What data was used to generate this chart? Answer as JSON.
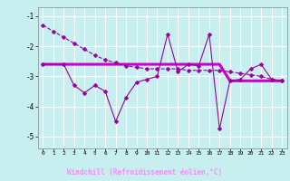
{
  "xlabel": "Windchill (Refroidissement éolien,°C)",
  "background_color": "#c8eff0",
  "grid_color": "#aadddd",
  "line_color": "#990099",
  "xlabel_bg": "#660066",
  "xlabel_fg": "#ff66ff",
  "ylim": [
    -5.4,
    -0.7
  ],
  "xlim": [
    -0.5,
    23.5
  ],
  "yticks": [
    -5,
    -4,
    -3,
    -2,
    -1
  ],
  "xticks": [
    0,
    1,
    2,
    3,
    4,
    5,
    6,
    7,
    8,
    9,
    10,
    11,
    12,
    13,
    14,
    15,
    16,
    17,
    18,
    19,
    20,
    21,
    22,
    23
  ],
  "series1_x": [
    0,
    1,
    2,
    3,
    4,
    5,
    6,
    7,
    8,
    9,
    10,
    11,
    12,
    13,
    14,
    15,
    16,
    17,
    18,
    19,
    20,
    21,
    22,
    23
  ],
  "series1_y": [
    -1.3,
    -1.5,
    -1.7,
    -1.9,
    -2.1,
    -2.3,
    -2.45,
    -2.55,
    -2.65,
    -2.7,
    -2.75,
    -2.75,
    -2.75,
    -2.75,
    -2.8,
    -2.8,
    -2.8,
    -2.8,
    -2.85,
    -2.9,
    -2.95,
    -3.0,
    -3.1,
    -3.15
  ],
  "series2_x": [
    0,
    2,
    3,
    4,
    5,
    6,
    7,
    8,
    9,
    10,
    11,
    12,
    13,
    14,
    15,
    16,
    17,
    18,
    19,
    20,
    21,
    22,
    23
  ],
  "series2_y": [
    -2.6,
    -2.6,
    -3.3,
    -3.55,
    -3.3,
    -3.5,
    -4.5,
    -3.7,
    -3.2,
    -3.1,
    -3.0,
    -1.6,
    -2.85,
    -2.6,
    -2.65,
    -1.6,
    -4.75,
    -3.15,
    -3.1,
    -2.75,
    -2.6,
    -3.1,
    -3.15
  ],
  "series3_x": [
    0,
    1,
    2,
    3,
    4,
    5,
    6,
    7,
    8,
    9,
    10,
    11,
    12,
    13,
    14,
    15,
    16,
    17,
    18,
    19,
    20,
    21,
    22,
    23
  ],
  "series3_y": [
    -2.6,
    -2.6,
    -2.6,
    -2.6,
    -2.6,
    -2.6,
    -2.6,
    -2.6,
    -2.6,
    -2.6,
    -2.6,
    -2.6,
    -2.6,
    -2.6,
    -2.6,
    -2.6,
    -2.6,
    -2.6,
    -3.15,
    -3.15,
    -3.15,
    -3.15,
    -3.15,
    -3.15
  ]
}
